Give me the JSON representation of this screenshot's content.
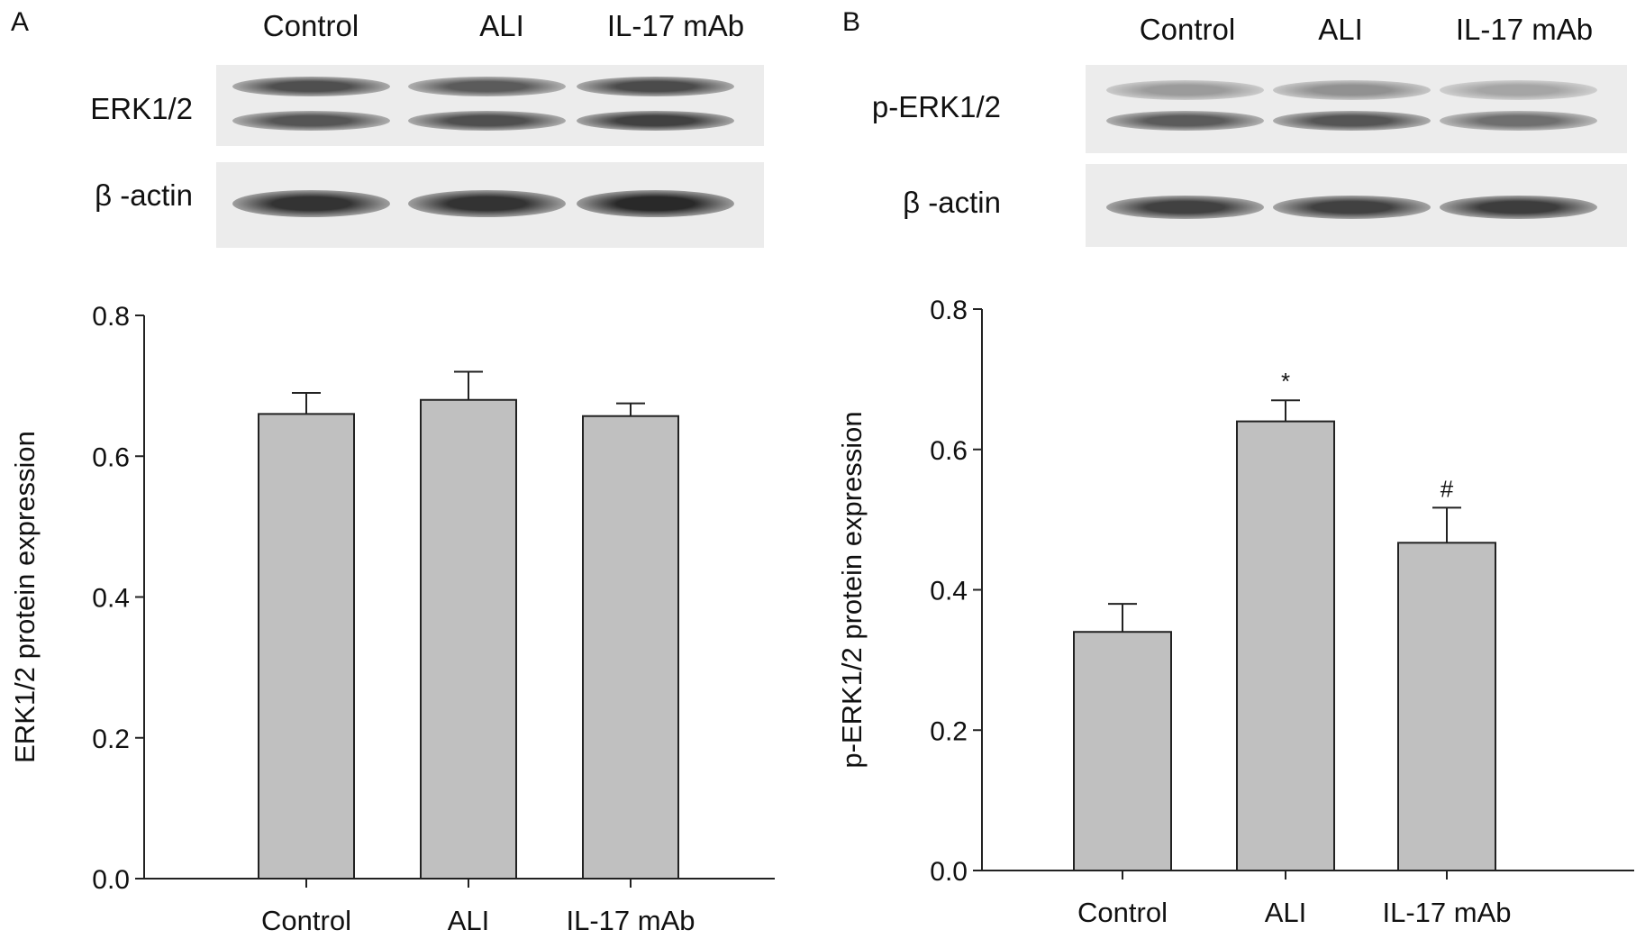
{
  "panels": [
    {
      "letter": "A",
      "lanes": [
        "Control",
        "ALI",
        "IL-17 mAb"
      ],
      "blots": [
        {
          "label": "ERK1/2",
          "band_rows": 2,
          "band_intensity": [
            [
              0.78,
              0.72,
              0.8
            ],
            [
              0.75,
              0.78,
              0.85
            ]
          ]
        },
        {
          "label": "β -actin",
          "band_rows": 1,
          "band_intensity": [
            [
              0.92,
              0.92,
              0.97
            ]
          ]
        }
      ]
    },
    {
      "letter": "B",
      "lanes": [
        "Control",
        "ALI",
        "IL-17 mAb"
      ],
      "blots": [
        {
          "label": "p-ERK1/2",
          "band_rows": 2,
          "band_intensity": [
            [
              0.4,
              0.45,
              0.35
            ],
            [
              0.72,
              0.75,
              0.62
            ]
          ]
        },
        {
          "label": "β -actin",
          "band_rows": 1,
          "band_intensity": [
            [
              0.85,
              0.85,
              0.87
            ]
          ]
        }
      ]
    }
  ],
  "chart_data": [
    {
      "type": "bar",
      "categories": [
        "Control",
        "ALI",
        "IL-17 mAb"
      ],
      "values": [
        0.66,
        0.68,
        0.657
      ],
      "errors": [
        0.03,
        0.04,
        0.018
      ],
      "annotations": [
        "",
        "",
        ""
      ],
      "ylabel": "ERK1/2 protein expression",
      "ylim": [
        0,
        0.8
      ],
      "yticks": [
        "0.0",
        "0.2",
        "0.4",
        "0.6",
        "0.8"
      ],
      "bar_color": "#c0c0c0",
      "grid": false
    },
    {
      "type": "bar",
      "categories": [
        "Control",
        "ALI",
        "IL-17 mAb"
      ],
      "values": [
        0.34,
        0.64,
        0.467
      ],
      "errors": [
        0.04,
        0.03,
        0.05
      ],
      "annotations": [
        "",
        "*",
        "#"
      ],
      "ylabel": "p-ERK1/2 protein expression",
      "ylim": [
        0,
        0.8
      ],
      "yticks": [
        "0.0",
        "0.2",
        "0.4",
        "0.6",
        "0.8"
      ],
      "bar_color": "#c0c0c0",
      "grid": false
    }
  ]
}
